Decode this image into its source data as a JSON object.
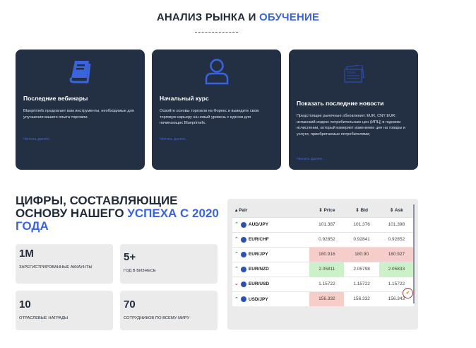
{
  "header": {
    "title": "АНАЛИЗ РЫНКА И",
    "title_accent": "ОБУЧЕНИЕ"
  },
  "cards": [
    {
      "icon": "book-icon",
      "title": "Последние вебинары",
      "text": "Blueprimefx предлагает вам инструменты, необходимые для улучшения вашего опыта торговли.",
      "link": "Читать далее.."
    },
    {
      "icon": "user-icon",
      "title": "Начальный курс",
      "text": "Освойте основы торговли на Форекс и выведите свою торговую карьеру на новый уровень с курсом для начинающих Blueprimefx.",
      "link": "Читать далее.."
    },
    {
      "icon": "news-icon",
      "title": "Показать последние новости",
      "text": "Предстоящие рыночные обновления: EUR, CNY EUR: испанский индекс потребительских цен (ИПЦ) в годовом исчислении, который измеряет изменение цен на товары и услуги, приобретаемые потребителями;",
      "link": "Читать далее.."
    }
  ],
  "stats_heading": {
    "part1": "ЦИФРЫ, СОСТАВЛЯЮЩИЕ ОСНОВУ НАШЕГО",
    "accent": "УСПЕХА С 2020 ГОДА"
  },
  "stats": [
    {
      "value": "1M",
      "label": "Зарегистрированные аккаунты"
    },
    {
      "value": "5+",
      "label": "Год в бизнесе"
    },
    {
      "value": "10",
      "label": "Отраслевые награды"
    },
    {
      "value": "70",
      "label": "Сотрудников по всему миру"
    }
  ],
  "quotes": {
    "headers": [
      "Pair",
      "Price",
      "Bid",
      "Ask"
    ],
    "rows": [
      {
        "dir": "up",
        "pair": "AUD/JPY",
        "price": "101.387",
        "bid": "101.376",
        "ask": "101.398",
        "hl": [
          "",
          "",
          ""
        ]
      },
      {
        "dir": "up",
        "pair": "EUR/CHF",
        "price": "0.92852",
        "bid": "0.92841",
        "ask": "0.92852",
        "hl": [
          "",
          "",
          ""
        ]
      },
      {
        "dir": "up",
        "pair": "EUR/JPY",
        "price": "180.916",
        "bid": "180.90",
        "ask": "180.927",
        "hl": [
          "red",
          "red",
          "red"
        ]
      },
      {
        "dir": "up",
        "pair": "EUR/NZD",
        "price": "2.05811",
        "bid": "2.05798",
        "ask": "2.05833",
        "hl": [
          "green",
          "",
          "green"
        ]
      },
      {
        "dir": "down",
        "pair": "EUR/USD",
        "price": "1.15722",
        "bid": "1.15722",
        "ask": "1.15722",
        "hl": [
          "",
          "",
          ""
        ]
      },
      {
        "dir": "up",
        "pair": "USD/JPY",
        "price": "156.332",
        "bid": "156.332",
        "ask": "156.343",
        "hl": [
          "red",
          "",
          ""
        ]
      }
    ]
  },
  "colors": {
    "accent": "#3a63e0",
    "card_bg": "#233044",
    "up": "#3a9c4a",
    "down": "#d23030",
    "highlight_red": "#f6cdc8",
    "highlight_green": "#ccf0c8"
  }
}
